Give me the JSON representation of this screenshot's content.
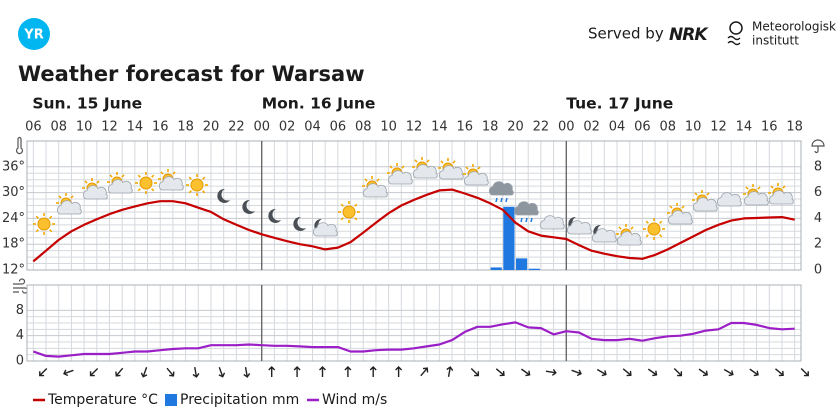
{
  "header": {
    "logo": "YR",
    "served_by": "Served by",
    "partner": "NRK",
    "institute": [
      "Meteorologisk",
      "institutt"
    ]
  },
  "chart_data": {
    "type": "line",
    "title": "Weather forecast for Warsaw",
    "days": [
      "Sun. 15 June",
      "Mon. 16 June",
      "Tue. 17 June"
    ],
    "categories": [
      "06",
      null,
      "08",
      null,
      "10",
      null,
      "12",
      null,
      "14",
      null,
      "16",
      null,
      "18",
      null,
      "20",
      null,
      "22",
      null,
      "00",
      null,
      "02",
      null,
      "04",
      null,
      "06",
      null,
      "08",
      null,
      "10",
      null,
      "12",
      null,
      "14",
      null,
      "16",
      null,
      "18",
      null,
      "20",
      null,
      "22",
      null,
      "00",
      null,
      "02",
      null,
      "04",
      null,
      "06",
      null,
      "08",
      null,
      "10",
      null,
      "12",
      null,
      "14",
      null,
      "16",
      null,
      "18"
    ],
    "ylim": [
      12,
      42
    ],
    "yticks": [
      {
        "value": 12,
        "label": "12°"
      },
      {
        "value": 18,
        "label": "18°"
      },
      {
        "value": 24,
        "label": "24°"
      },
      {
        "value": 30,
        "label": "30°"
      },
      {
        "value": 36,
        "label": "36°"
      }
    ],
    "y2lim": [
      0,
      10
    ],
    "y2ticks": [
      0,
      2,
      4,
      6,
      8
    ],
    "y3lim": [
      0,
      12
    ],
    "y3ticks": [
      0,
      4,
      8
    ],
    "grid": true,
    "legend": "bottom",
    "series": [
      {
        "name": "Temperature °C",
        "color": "#c60000",
        "values": [
          14,
          16.5,
          19,
          21,
          22.5,
          23.8,
          25,
          26,
          26.8,
          27.5,
          28,
          28,
          27.5,
          26.5,
          25.5,
          23.8,
          22.5,
          21.3,
          20.3,
          19.5,
          18.7,
          18,
          17.5,
          16.8,
          17.2,
          18.5,
          20.7,
          23,
          25.2,
          27,
          28.3,
          29.5,
          30.5,
          30.7,
          29.8,
          28.8,
          27.5,
          26,
          23,
          21,
          20,
          19.6,
          19.2,
          17.8,
          16.5,
          15.8,
          15.2,
          14.8,
          14.6,
          15.5,
          16.8,
          18.3,
          19.8,
          21.3,
          22.5,
          23.5,
          24,
          24.1,
          24.2,
          24.3,
          23.7
        ]
      },
      {
        "name": "Precipitation mm",
        "type": "bar",
        "axis": "y2",
        "color": "#1f77e0",
        "values": [
          0,
          0,
          0,
          0,
          0,
          0,
          0,
          0,
          0,
          0,
          0,
          0,
          0,
          0,
          0,
          0,
          0,
          0,
          0,
          0,
          0,
          0,
          0,
          0,
          0,
          0,
          0,
          0,
          0,
          0,
          0,
          0,
          0,
          0,
          0,
          0,
          0.2,
          4.9,
          0.9,
          0.1,
          0,
          0,
          0,
          0,
          0,
          0,
          0,
          0,
          0,
          0,
          0,
          0,
          0,
          0,
          0,
          0,
          0,
          0,
          0,
          0,
          0
        ]
      },
      {
        "name": "Wind m/s",
        "axis": "y3",
        "color": "#9b1fc7",
        "values": [
          1.5,
          0.8,
          0.7,
          0.9,
          1.1,
          1.1,
          1.1,
          1.3,
          1.5,
          1.5,
          1.7,
          1.9,
          2.0,
          2.0,
          2.5,
          2.5,
          2.5,
          2.6,
          2.5,
          2.4,
          2.4,
          2.3,
          2.2,
          2.2,
          2.2,
          1.5,
          1.5,
          1.7,
          1.8,
          1.8,
          2.0,
          2.3,
          2.6,
          3.3,
          4.6,
          5.4,
          5.4,
          5.8,
          6.1,
          5.3,
          5.2,
          4.2,
          4.7,
          4.5,
          3.5,
          3.3,
          3.3,
          3.5,
          3.2,
          3.6,
          3.9,
          4.0,
          4.3,
          4.8,
          5.0,
          6.0,
          6.0,
          5.7,
          5.2,
          5.0,
          5.1
        ],
        "directions": [
          225,
          null,
          250,
          null,
          225,
          null,
          220,
          null,
          200,
          null,
          140,
          null,
          170,
          null,
          160,
          null,
          170,
          null,
          0,
          null,
          0,
          null,
          0,
          null,
          0,
          null,
          0,
          null,
          0,
          null,
          40,
          null,
          10,
          null,
          135,
          null,
          130,
          null,
          125,
          null,
          100,
          null,
          110,
          null,
          120,
          null,
          130,
          null,
          125,
          null,
          135,
          null,
          125,
          null,
          120,
          null,
          125,
          null,
          130,
          null,
          135
        ]
      }
    ]
  }
}
